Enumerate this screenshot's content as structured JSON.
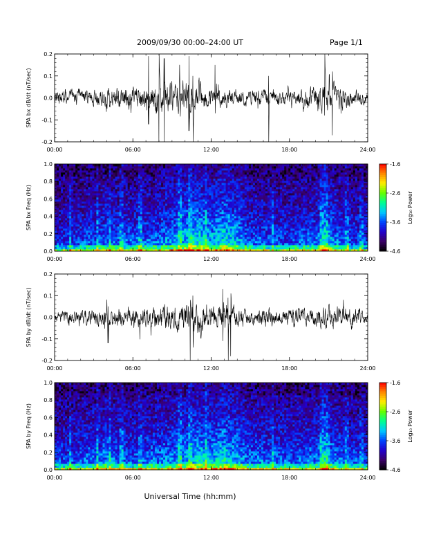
{
  "header": {
    "title": "2009/09/30  00:00–24:00 UT",
    "page": "Page 1/1"
  },
  "xaxis_label": "Universal Time (hh:mm)",
  "chart_data": [
    {
      "type": "line",
      "ylabel": "SPA bx dB/dt (nT/sec)",
      "xlim": [
        0,
        24
      ],
      "ylim": [
        -0.2,
        0.2
      ],
      "x_tick_labels": [
        "00:00",
        "06:00",
        "12:00",
        "18:00",
        "24:00"
      ],
      "y_ticks": [
        -0.2,
        -0.1,
        0.0,
        0.1,
        0.2
      ],
      "y_tick_labels": [
        "-0.2",
        "-0.1",
        "0.0",
        "0.1",
        "0.2"
      ],
      "series": [
        {
          "color": "#000000",
          "envelope": {
            "hours": [
              0,
              1,
              2,
              3,
              4,
              5,
              6,
              7,
              8,
              9,
              10,
              11,
              12,
              13,
              14,
              15,
              16,
              17,
              18,
              19,
              20,
              21,
              22,
              23,
              24
            ],
            "amplitude": [
              0.03,
              0.05,
              0.045,
              0.04,
              0.045,
              0.055,
              0.05,
              0.075,
              0.085,
              0.07,
              0.085,
              0.07,
              0.05,
              0.045,
              0.04,
              0.04,
              0.045,
              0.04,
              0.035,
              0.04,
              0.055,
              0.085,
              0.055,
              0.04,
              0.03
            ]
          },
          "spikes": [
            {
              "hour": 7.2,
              "max": 0.19,
              "min": -0.12
            },
            {
              "hour": 8.0,
              "max": 0.2,
              "min": -0.2
            },
            {
              "hour": 8.4,
              "max": 0.18,
              "min": -0.2
            },
            {
              "hour": 10.3,
              "max": 0.19,
              "min": -0.15
            },
            {
              "hour": 10.6,
              "max": 0.1,
              "min": -0.2
            },
            {
              "hour": 12.3,
              "max": 0.15,
              "min": -0.07
            },
            {
              "hour": 16.4,
              "max": 0.1,
              "min": -0.2
            },
            {
              "hour": 20.7,
              "max": 0.2,
              "min": -0.08
            },
            {
              "hour": 21.3,
              "max": 0.12,
              "min": -0.17
            }
          ]
        }
      ]
    },
    {
      "type": "heatmap",
      "ylabel": "SPA bx Freq (Hz)",
      "xlim": [
        0,
        24
      ],
      "ylim": [
        0.0,
        1.0
      ],
      "x_tick_labels": [
        "00:00",
        "06:00",
        "12:00",
        "18:00",
        "24:00"
      ],
      "y_ticks": [
        0.0,
        0.2,
        0.4,
        0.6,
        0.8,
        1.0
      ],
      "y_tick_labels": [
        "0.0",
        "0.2",
        "0.4",
        "0.6",
        "0.8",
        "1.0"
      ],
      "colorbar": {
        "label": "Log₁₀ Power",
        "range": [
          -4.6,
          -1.6
        ],
        "ticks": [
          -1.6,
          -2.6,
          -3.6,
          -4.6
        ],
        "tick_labels": [
          "-1.6",
          "-2.6",
          "-3.6",
          "-4.6"
        ],
        "colors": [
          "#000000",
          "#3a0066",
          "#2200cc",
          "#0044ff",
          "#00c8ff",
          "#00ff90",
          "#66ff00",
          "#ffee00",
          "#ff8800",
          "#ff0000"
        ]
      },
      "activity": {
        "hours": [
          0,
          2,
          4,
          6,
          8,
          10,
          11,
          12,
          13,
          14,
          15,
          16,
          18,
          20,
          21,
          22,
          24
        ],
        "level": [
          0.35,
          0.45,
          0.55,
          0.5,
          0.55,
          0.75,
          0.85,
          0.7,
          0.85,
          0.7,
          0.5,
          0.5,
          0.45,
          0.55,
          0.7,
          0.5,
          0.4
        ]
      }
    },
    {
      "type": "line",
      "ylabel": "SPA by dB/dt (nT/sec)",
      "xlim": [
        0,
        24
      ],
      "ylim": [
        -0.2,
        0.2
      ],
      "x_tick_labels": [
        "00:00",
        "06:00",
        "12:00",
        "18:00",
        "24:00"
      ],
      "y_ticks": [
        -0.2,
        -0.1,
        0.0,
        0.1,
        0.2
      ],
      "y_tick_labels": [
        "-0.2",
        "-0.1",
        "0.0",
        "0.1",
        "0.2"
      ],
      "series": [
        {
          "color": "#000000",
          "envelope": {
            "hours": [
              0,
              1,
              2,
              3,
              4,
              5,
              6,
              7,
              8,
              9,
              10,
              11,
              12,
              13,
              14,
              15,
              16,
              17,
              18,
              19,
              20,
              21,
              22,
              23,
              24
            ],
            "amplitude": [
              0.025,
              0.035,
              0.04,
              0.04,
              0.045,
              0.05,
              0.05,
              0.055,
              0.065,
              0.06,
              0.075,
              0.08,
              0.06,
              0.07,
              0.055,
              0.045,
              0.045,
              0.045,
              0.04,
              0.045,
              0.05,
              0.06,
              0.05,
              0.045,
              0.03
            ]
          },
          "spikes": [
            {
              "hour": 4.1,
              "max": 0.05,
              "min": -0.12
            },
            {
              "hour": 10.4,
              "max": 0.08,
              "min": -0.2
            },
            {
              "hour": 10.6,
              "max": 0.1,
              "min": -0.14
            },
            {
              "hour": 12.9,
              "max": 0.13,
              "min": -0.11
            },
            {
              "hour": 13.3,
              "max": 0.09,
              "min": -0.2
            },
            {
              "hour": 13.5,
              "max": 0.11,
              "min": -0.18
            }
          ]
        }
      ]
    },
    {
      "type": "heatmap",
      "ylabel": "SPA by Freq (Hz)",
      "xlim": [
        0,
        24
      ],
      "ylim": [
        0.0,
        1.0
      ],
      "x_tick_labels": [
        "00:00",
        "06:00",
        "12:00",
        "18:00",
        "24:00"
      ],
      "y_ticks": [
        0.0,
        0.2,
        0.4,
        0.6,
        0.8,
        1.0
      ],
      "y_tick_labels": [
        "0.0",
        "0.2",
        "0.4",
        "0.6",
        "0.8",
        "1.0"
      ],
      "colorbar": {
        "label": "Log₁₀ Power",
        "range": [
          -4.6,
          -1.6
        ],
        "ticks": [
          -1.6,
          -2.6,
          -3.6,
          -4.6
        ],
        "tick_labels": [
          "-1.6",
          "-2.6",
          "-3.6",
          "-4.6"
        ],
        "colors": [
          "#000000",
          "#3a0066",
          "#2200cc",
          "#0044ff",
          "#00c8ff",
          "#00ff90",
          "#66ff00",
          "#ffee00",
          "#ff8800",
          "#ff0000"
        ]
      },
      "activity": {
        "hours": [
          0,
          2,
          4,
          6,
          8,
          10,
          11,
          12,
          13,
          14,
          15,
          16,
          18,
          20,
          21,
          22,
          24
        ],
        "level": [
          0.4,
          0.5,
          0.6,
          0.5,
          0.55,
          0.7,
          0.8,
          0.7,
          0.85,
          0.7,
          0.55,
          0.55,
          0.5,
          0.55,
          0.7,
          0.5,
          0.4
        ]
      }
    }
  ]
}
